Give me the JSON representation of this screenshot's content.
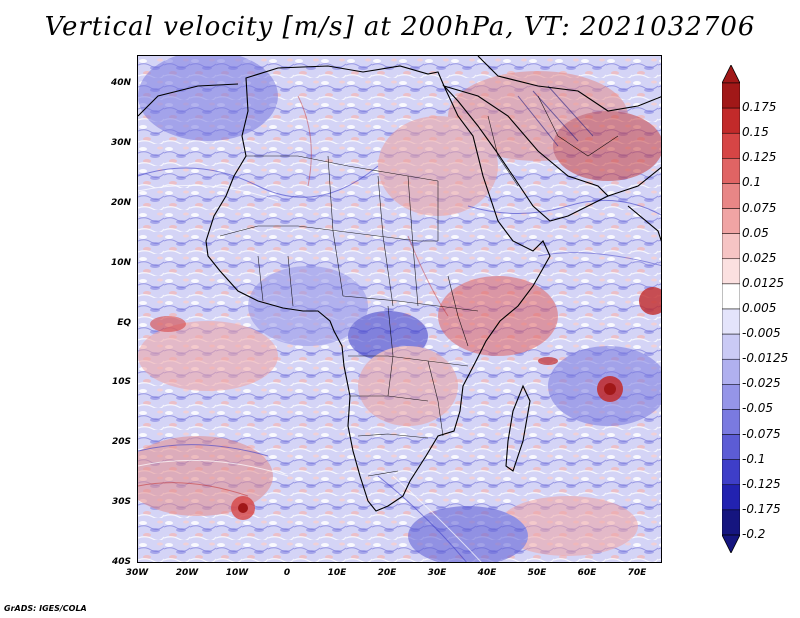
{
  "title": "Vertical velocity [m/s] at 200hPa, VT: 2021032706",
  "map": {
    "lat_labels": [
      "40N",
      "30N",
      "20N",
      "10N",
      "EQ",
      "10S",
      "20S",
      "30S",
      "40S"
    ],
    "lon_labels": [
      "30W",
      "20W",
      "10W",
      "0",
      "10E",
      "20E",
      "30E",
      "40E",
      "50E",
      "60E",
      "70E"
    ],
    "lat_range": [
      -40,
      45
    ],
    "lon_range": [
      -30,
      75
    ]
  },
  "colorbar": {
    "labels": [
      "0.175",
      "0.15",
      "0.125",
      "0.1",
      "0.075",
      "0.05",
      "0.025",
      "0.0125",
      "0.005",
      "-0.005",
      "-0.0125",
      "-0.025",
      "-0.05",
      "-0.075",
      "-0.1",
      "-0.125",
      "-0.175",
      "-0.2"
    ],
    "colors": [
      "#a11818",
      "#c22a2a",
      "#d64545",
      "#e06464",
      "#e88686",
      "#f0a4a4",
      "#f6c4c4",
      "#fbe0e0",
      "#ffffff",
      "#e4e4fb",
      "#cacaf5",
      "#b0b0ef",
      "#9595e8",
      "#7a7ae0",
      "#5c5cd5",
      "#3e3ec8",
      "#2222b0",
      "#15157f"
    ],
    "arrow_top_color": "#a11818",
    "arrow_bottom_color": "#15157f"
  },
  "footer": "GrADS: IGES/COLA"
}
